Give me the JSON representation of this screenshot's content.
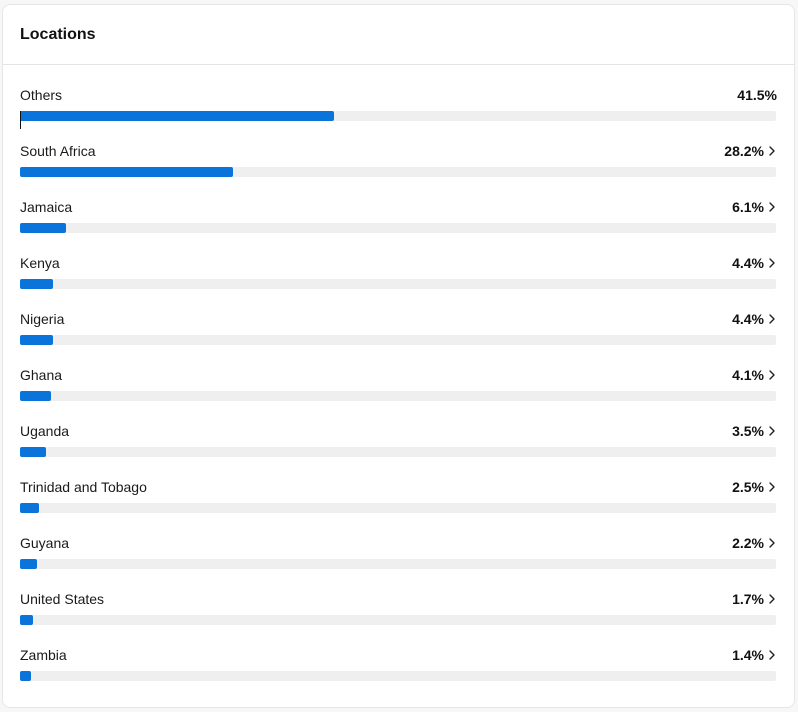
{
  "card": {
    "title": "Locations"
  },
  "colors": {
    "bar_fill": "#0a74da",
    "bar_track": "#efefef"
  },
  "locations": [
    {
      "label": "Others",
      "percent_text": "41.5%",
      "percent": 41.5,
      "has_chevron": false
    },
    {
      "label": "South Africa",
      "percent_text": "28.2%",
      "percent": 28.2,
      "has_chevron": true
    },
    {
      "label": "Jamaica",
      "percent_text": "6.1%",
      "percent": 6.1,
      "has_chevron": true
    },
    {
      "label": "Kenya",
      "percent_text": "4.4%",
      "percent": 4.4,
      "has_chevron": true
    },
    {
      "label": "Nigeria",
      "percent_text": "4.4%",
      "percent": 4.4,
      "has_chevron": true
    },
    {
      "label": "Ghana",
      "percent_text": "4.1%",
      "percent": 4.1,
      "has_chevron": true
    },
    {
      "label": "Uganda",
      "percent_text": "3.5%",
      "percent": 3.5,
      "has_chevron": true
    },
    {
      "label": "Trinidad and Tobago",
      "percent_text": "2.5%",
      "percent": 2.5,
      "has_chevron": true
    },
    {
      "label": "Guyana",
      "percent_text": "2.2%",
      "percent": 2.2,
      "has_chevron": true
    },
    {
      "label": "United States",
      "percent_text": "1.7%",
      "percent": 1.7,
      "has_chevron": true
    },
    {
      "label": "Zambia",
      "percent_text": "1.4%",
      "percent": 1.4,
      "has_chevron": true
    }
  ]
}
